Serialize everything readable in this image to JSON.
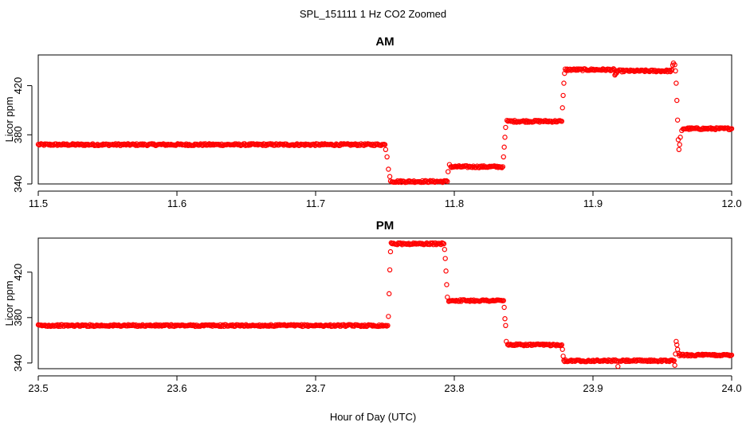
{
  "figure": {
    "title": "SPL_151111  1 Hz CO2 Zoomed",
    "xlabel": "Hour of Day (UTC)"
  },
  "chart_data": [
    {
      "type": "scatter",
      "title": "AM",
      "ylabel": "Licor ppm",
      "xlim": [
        11.5,
        12.0
      ],
      "ylim": [
        340,
        445
      ],
      "x_ticks": [
        11.5,
        11.6,
        11.7,
        11.8,
        11.9,
        12.0
      ],
      "x_tick_labels": [
        "11.5",
        "11.6",
        "11.7",
        "11.8",
        "11.9",
        "12.0"
      ],
      "y_ticks": [
        340,
        380,
        420
      ],
      "y_tick_labels": [
        "340",
        "380",
        "420"
      ],
      "marker": "open-circle",
      "color": "#ff0000",
      "series": [
        {
          "x": [
            11.5,
            11.75,
            11.7505,
            11.7515,
            11.7525,
            11.7535,
            11.754,
            11.755,
            11.795,
            11.7955,
            11.7965,
            11.7975,
            11.798,
            11.835,
            11.8355,
            11.836,
            11.8365,
            11.837,
            11.838,
            11.8775,
            11.878,
            11.8785,
            11.879,
            11.8795,
            11.88,
            11.9155,
            11.9158,
            11.9162,
            11.9165,
            11.917,
            11.9175,
            11.9565,
            11.957,
            11.9575,
            11.958,
            11.959,
            11.9595,
            11.96,
            11.9605,
            11.961,
            11.9615,
            11.962,
            11.9625,
            11.963,
            11.964,
            11.965,
            12.0
          ],
          "y": [
            372,
            372,
            368,
            362,
            352,
            346,
            343,
            342,
            342,
            350,
            356,
            354,
            354,
            354,
            362,
            370,
            378,
            386,
            391,
            391,
            402,
            412,
            422,
            430,
            433,
            433,
            428,
            429,
            431,
            430,
            432,
            432,
            433,
            436,
            438,
            437,
            432,
            422,
            408,
            392,
            376,
            368,
            372,
            378,
            383,
            385,
            385
          ]
        }
      ]
    },
    {
      "type": "scatter",
      "title": "PM",
      "ylabel": "Licor ppm",
      "xlim": [
        23.5,
        24.0
      ],
      "ylim": [
        335,
        450
      ],
      "x_ticks": [
        23.5,
        23.6,
        23.7,
        23.8,
        23.9,
        24.0
      ],
      "x_tick_labels": [
        "23.5",
        "23.6",
        "23.7",
        "23.8",
        "23.9",
        "24.0"
      ],
      "y_ticks": [
        340,
        380,
        420
      ],
      "y_tick_labels": [
        "340",
        "380",
        "420"
      ],
      "marker": "open-circle",
      "color": "#ff0000",
      "series": [
        {
          "x": [
            23.5,
            23.752,
            23.7525,
            23.753,
            23.7535,
            23.754,
            23.7545,
            23.755,
            23.7555,
            23.7925,
            23.793,
            23.7935,
            23.794,
            23.7945,
            23.795,
            23.796,
            23.8355,
            23.836,
            23.8365,
            23.837,
            23.8375,
            23.8385,
            23.8775,
            23.878,
            23.8785,
            23.879,
            23.8795,
            23.9175,
            23.918,
            23.9185,
            23.9195,
            23.9585,
            23.959,
            23.9595,
            23.96,
            23.9605,
            23.961,
            23.962,
            23.9625,
            23.963,
            24.0
          ],
          "y": [
            373,
            373,
            381,
            401,
            422,
            438,
            445,
            446,
            445,
            445,
            440,
            432,
            421,
            409,
            398,
            395,
            395,
            389,
            379,
            373,
            359,
            356,
            356,
            352,
            346,
            343,
            342,
            342,
            337,
            341,
            342,
            342,
            338,
            348,
            359,
            356,
            352,
            349,
            347,
            347,
            347
          ]
        }
      ]
    }
  ]
}
